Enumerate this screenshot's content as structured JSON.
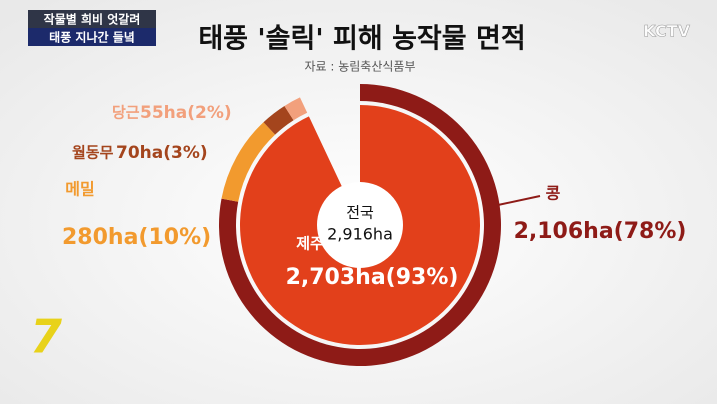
{
  "banner": {
    "line1": "작물별 희비 엇갈려",
    "line2": "태풍 지나간 들녘"
  },
  "logo": "KCTV",
  "channel_logo": "7",
  "chart_data": {
    "type": "pie",
    "title": "태풍 '솔릭' 피해 농작물 면적",
    "subtitle": "자료 : 농림축산식품부",
    "center": {
      "label": "전국",
      "value_label": "2,916ha"
    },
    "outer_ring": {
      "categories": [
        "콩",
        "메밀",
        "월동무",
        "당근"
      ],
      "values": [
        78,
        10,
        3,
        2
      ],
      "value_labels": [
        "2,106ha(78%)",
        "280ha(10%)",
        "70ha(3%)",
        "55ha(2%)"
      ],
      "colors": [
        "#8e1b17",
        "#f29a2e",
        "#a4451d",
        "#f2a07c"
      ]
    },
    "inner_pie": {
      "categories": [
        "제주"
      ],
      "values": [
        93
      ],
      "value_labels": [
        "2,703ha(93%)"
      ],
      "colors": [
        "#e2401b"
      ]
    }
  }
}
